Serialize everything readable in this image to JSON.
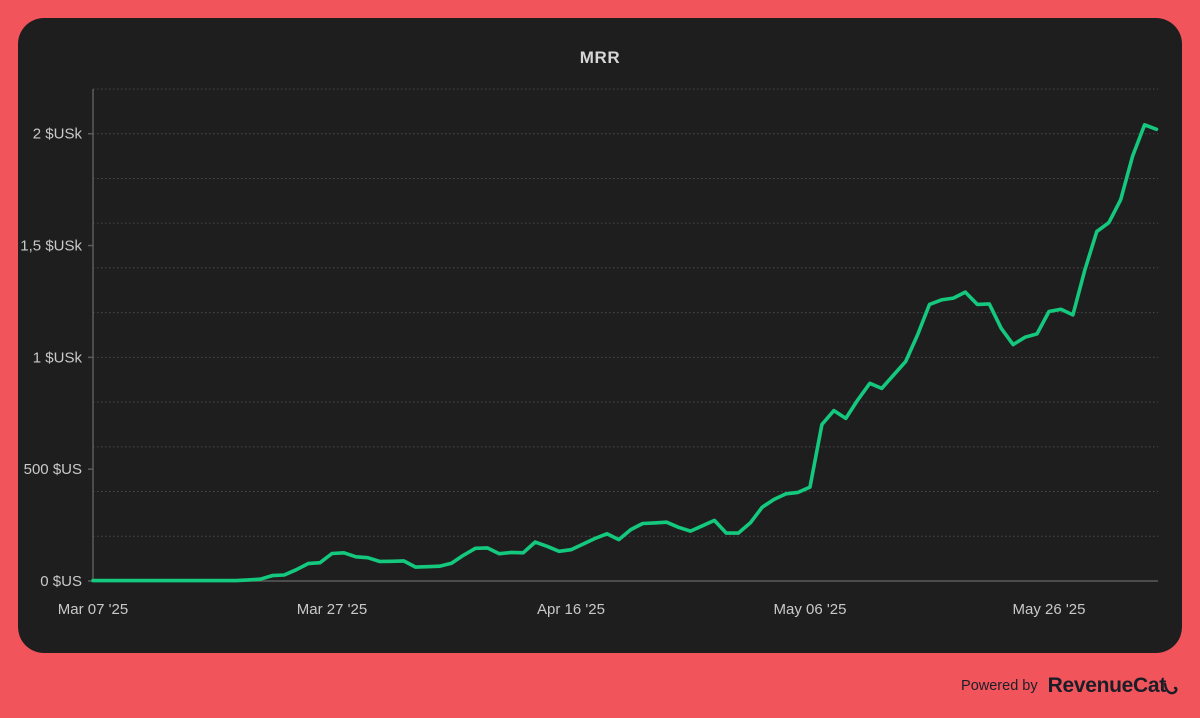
{
  "page": {
    "background_color": "#f2545b",
    "panel_color": "#1e1e1f"
  },
  "header": {
    "title": "MRR"
  },
  "footer": {
    "powered_by_label": "Powered by",
    "brand_name": "RevenueCat"
  },
  "chart_data": {
    "type": "line",
    "title": "MRR",
    "series_name": "MRR",
    "line_color": "#14c87d",
    "grid_color": "#4b4b4b",
    "axis_color": "#5c5c5c",
    "label_color": "#c9c9c9",
    "legend_position": "none",
    "grid": "dotted-horizontal",
    "ylim": [
      0,
      2200
    ],
    "grid_step": 200,
    "y_tick_values": [
      0,
      500,
      1000,
      1500,
      2000
    ],
    "y_tick_labels": [
      "0 $US",
      "500 $US",
      "1 $USk",
      "1,5 $USk",
      "2 $USk"
    ],
    "x_tick_indices": [
      0,
      20,
      40,
      60,
      80
    ],
    "x_tick_labels": [
      "Mar 07 '25",
      "Mar 27 '25",
      "Apr 16 '25",
      "May 06 '25",
      "May 26 '25"
    ],
    "values": [
      2,
      2,
      2,
      2,
      2,
      2,
      2,
      2,
      2,
      2,
      2,
      2,
      2,
      5,
      8,
      24,
      27,
      50,
      78,
      82,
      123,
      126,
      108,
      104,
      87,
      88,
      90,
      62,
      64,
      66,
      79,
      115,
      146,
      148,
      122,
      128,
      126,
      174,
      155,
      133,
      140,
      165,
      190,
      211,
      185,
      230,
      257,
      260,
      263,
      240,
      223,
      247,
      271,
      214,
      214,
      260,
      330,
      365,
      390,
      396,
      420,
      700,
      762,
      727,
      810,
      884,
      861,
      921,
      981,
      1100,
      1237,
      1257,
      1265,
      1292,
      1237,
      1239,
      1130,
      1057,
      1090,
      1105,
      1205,
      1215,
      1190,
      1390,
      1563,
      1602,
      1705,
      1900,
      2040,
      2020
    ]
  }
}
